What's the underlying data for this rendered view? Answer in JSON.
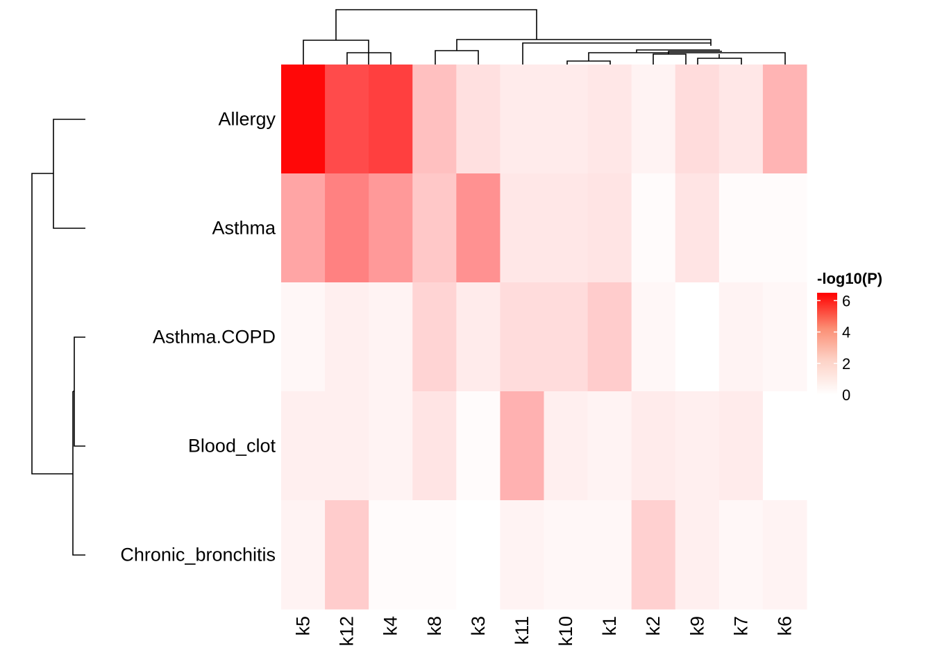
{
  "chart_data": {
    "type": "heatmap",
    "rows": [
      "Allergy",
      "Asthma",
      "Asthma.COPD",
      "Blood_clot",
      "Chronic_bronchitis"
    ],
    "columns": [
      "k5",
      "k12",
      "k4",
      "k8",
      "k3",
      "k11",
      "k10",
      "k1",
      "k2",
      "k9",
      "k7",
      "k6"
    ],
    "values": [
      [
        6.3,
        4.6,
        4.9,
        1.6,
        0.8,
        0.5,
        0.5,
        0.6,
        0.3,
        0.9,
        0.6,
        1.9
      ],
      [
        2.3,
        3.2,
        2.6,
        1.4,
        2.8,
        0.6,
        0.6,
        0.7,
        0.1,
        0.7,
        0.1,
        0.1
      ],
      [
        0.2,
        0.4,
        0.3,
        1.1,
        0.5,
        0.9,
        0.9,
        1.3,
        0.2,
        0.0,
        0.3,
        0.2
      ],
      [
        0.4,
        0.4,
        0.3,
        0.7,
        0.1,
        2.0,
        0.4,
        0.3,
        0.5,
        0.4,
        0.5,
        0.0
      ],
      [
        0.3,
        1.3,
        0.1,
        0.1,
        0.0,
        0.3,
        0.2,
        0.2,
        1.2,
        0.4,
        0.2,
        0.3
      ]
    ],
    "color_scale": {
      "low": "#ffffff",
      "high": "#ff0000",
      "min": 0,
      "max": 6.5
    },
    "legend": {
      "title": "-log10(P)",
      "ticks": [
        0,
        2,
        4,
        6
      ],
      "placement": "right"
    },
    "row_dendrogram": true,
    "column_dendrogram": true
  }
}
